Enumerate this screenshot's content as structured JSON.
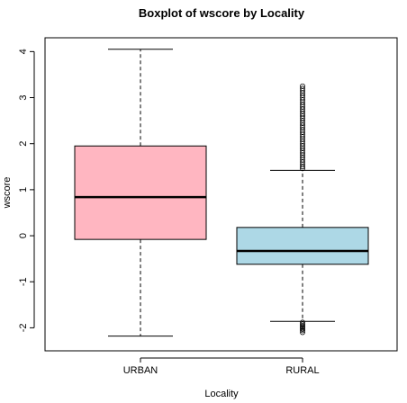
{
  "chart_data": {
    "type": "boxplot",
    "title": "Boxplot of wscore by Locality",
    "xlabel": "Locality",
    "ylabel": "wscore",
    "ylim": [
      -2.5,
      4.3
    ],
    "yticks": [
      "-2",
      "-1",
      "0",
      "1",
      "2",
      "3",
      "4"
    ],
    "ytick_values": [
      -2,
      -1,
      0,
      1,
      2,
      3,
      4
    ],
    "categories": [
      "URBAN",
      "RURAL"
    ],
    "boxes": [
      {
        "category": "URBAN",
        "whisker_low": -2.18,
        "q1": -0.08,
        "median": 0.84,
        "q3": 1.95,
        "whisker_high": 4.05,
        "color": "#ffb6c1",
        "outliers": []
      },
      {
        "category": "RURAL",
        "whisker_low": -1.86,
        "q1": -0.62,
        "median": -0.33,
        "q3": 0.18,
        "whisker_high": 1.42,
        "color": "#add8e6",
        "outliers": [
          -1.88,
          -1.92,
          -1.95,
          -1.98,
          -2.0,
          -2.03,
          -2.06,
          -2.1,
          1.46,
          1.5,
          1.55,
          1.6,
          1.65,
          1.7,
          1.75,
          1.8,
          1.85,
          1.9,
          1.95,
          2.0,
          2.05,
          2.1,
          2.15,
          2.2,
          2.25,
          2.3,
          2.35,
          2.4,
          2.45,
          2.5,
          2.55,
          2.6,
          2.65,
          2.7,
          2.75,
          2.8,
          2.85,
          2.9,
          2.95,
          3.0,
          3.05,
          3.1,
          3.15,
          3.2,
          3.25
        ]
      }
    ],
    "grid": false,
    "legend": "none"
  }
}
